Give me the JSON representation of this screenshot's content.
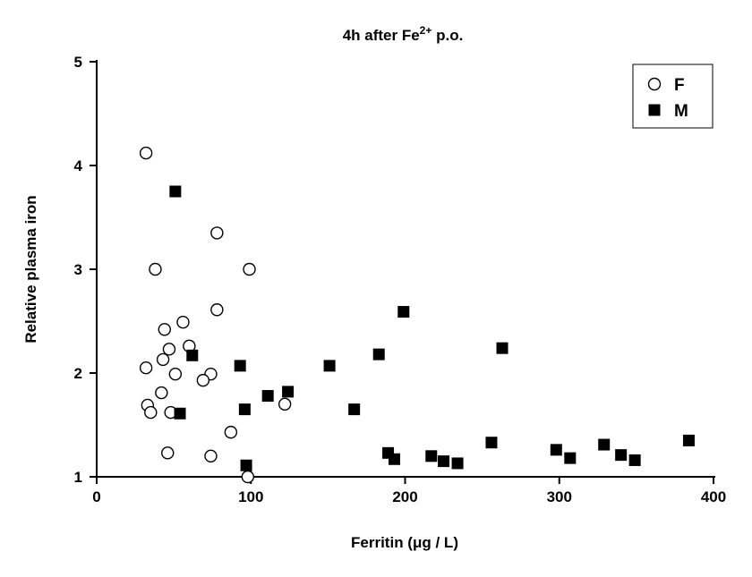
{
  "chart_data": {
    "type": "scatter",
    "title": "4h after Fe",
    "title_sup": "2+",
    "title_suffix": " p.o.",
    "xlabel_pre": "Ferritin (",
    "xlabel_mu": "μ",
    "xlabel_post": "g / L)",
    "ylabel": "Relative plasma iron",
    "xlim": [
      0,
      400
    ],
    "ylim": [
      1,
      5
    ],
    "xticks": [
      0,
      100,
      200,
      300,
      400
    ],
    "yticks": [
      1,
      2,
      3,
      4,
      5
    ],
    "grid": false,
    "legend_position": "top-right",
    "series": [
      {
        "name": "F",
        "marker": "open-circle",
        "points": [
          [
            32,
            4.12
          ],
          [
            38,
            3.0
          ],
          [
            78,
            3.35
          ],
          [
            99,
            3.0
          ],
          [
            78,
            2.61
          ],
          [
            44,
            2.42
          ],
          [
            56,
            2.49
          ],
          [
            60,
            2.26
          ],
          [
            47,
            2.23
          ],
          [
            43,
            2.13
          ],
          [
            32,
            2.05
          ],
          [
            51,
            1.99
          ],
          [
            74,
            1.99
          ],
          [
            69,
            1.93
          ],
          [
            42,
            1.81
          ],
          [
            33,
            1.69
          ],
          [
            35,
            1.62
          ],
          [
            48,
            1.62
          ],
          [
            122,
            1.7
          ],
          [
            87,
            1.43
          ],
          [
            46,
            1.23
          ],
          [
            74,
            1.2
          ],
          [
            98,
            1.0
          ]
        ]
      },
      {
        "name": "M",
        "marker": "filled-square",
        "points": [
          [
            51,
            3.75
          ],
          [
            62,
            2.17
          ],
          [
            93,
            2.07
          ],
          [
            54,
            1.61
          ],
          [
            96,
            1.65
          ],
          [
            111,
            1.78
          ],
          [
            124,
            1.82
          ],
          [
            97,
            1.11
          ],
          [
            151,
            2.07
          ],
          [
            167,
            1.65
          ],
          [
            183,
            2.18
          ],
          [
            199,
            2.59
          ],
          [
            189,
            1.23
          ],
          [
            193,
            1.17
          ],
          [
            217,
            1.2
          ],
          [
            225,
            1.15
          ],
          [
            234,
            1.13
          ],
          [
            256,
            1.33
          ],
          [
            263,
            2.24
          ],
          [
            298,
            1.26
          ],
          [
            307,
            1.18
          ],
          [
            329,
            1.31
          ],
          [
            340,
            1.21
          ],
          [
            349,
            1.16
          ],
          [
            384,
            1.35
          ]
        ]
      }
    ]
  }
}
